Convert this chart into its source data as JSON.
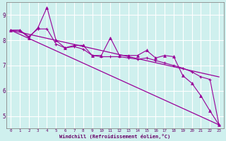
{
  "xlabel": "Windchill (Refroidissement éolien,°C)",
  "bg_color": "#cff0ee",
  "line_color": "#990099",
  "grid_color": "#ffffff",
  "axis_color": "#666666",
  "xlim": [
    -0.5,
    23.5
  ],
  "ylim": [
    4.5,
    9.5
  ],
  "yticks": [
    5,
    6,
    7,
    8,
    9
  ],
  "xticks": [
    0,
    1,
    2,
    3,
    4,
    5,
    6,
    7,
    8,
    9,
    10,
    11,
    12,
    13,
    14,
    15,
    16,
    17,
    18,
    19,
    20,
    21,
    22,
    23
  ],
  "series_triangle": {
    "x": [
      0,
      1,
      2,
      3,
      4,
      5,
      6,
      7,
      8,
      9,
      10,
      11,
      12,
      13,
      14,
      15,
      16,
      17,
      18,
      19,
      20,
      21,
      22,
      23
    ],
    "y": [
      8.4,
      8.4,
      8.1,
      8.5,
      9.3,
      8.0,
      7.7,
      7.8,
      7.8,
      7.4,
      7.4,
      8.1,
      7.4,
      7.4,
      7.4,
      7.6,
      7.3,
      7.4,
      7.35,
      6.6,
      6.3,
      5.8,
      5.2,
      4.65
    ]
  },
  "series_cross": {
    "x": [
      0,
      1,
      2,
      3,
      4,
      5,
      6,
      7,
      8,
      9,
      10,
      11,
      12,
      13,
      14,
      15,
      16,
      17,
      18,
      19,
      20,
      21,
      22,
      23
    ],
    "y": [
      8.4,
      8.4,
      8.15,
      8.45,
      8.45,
      7.85,
      7.7,
      7.75,
      7.65,
      7.4,
      7.35,
      7.35,
      7.35,
      7.3,
      7.25,
      7.3,
      7.2,
      7.1,
      7.0,
      6.9,
      6.75,
      6.55,
      6.45,
      4.65
    ]
  },
  "line1": {
    "x": [
      0,
      23
    ],
    "y": [
      8.4,
      6.55
    ]
  },
  "line2": {
    "x": [
      0,
      23
    ],
    "y": [
      8.4,
      4.65
    ]
  }
}
